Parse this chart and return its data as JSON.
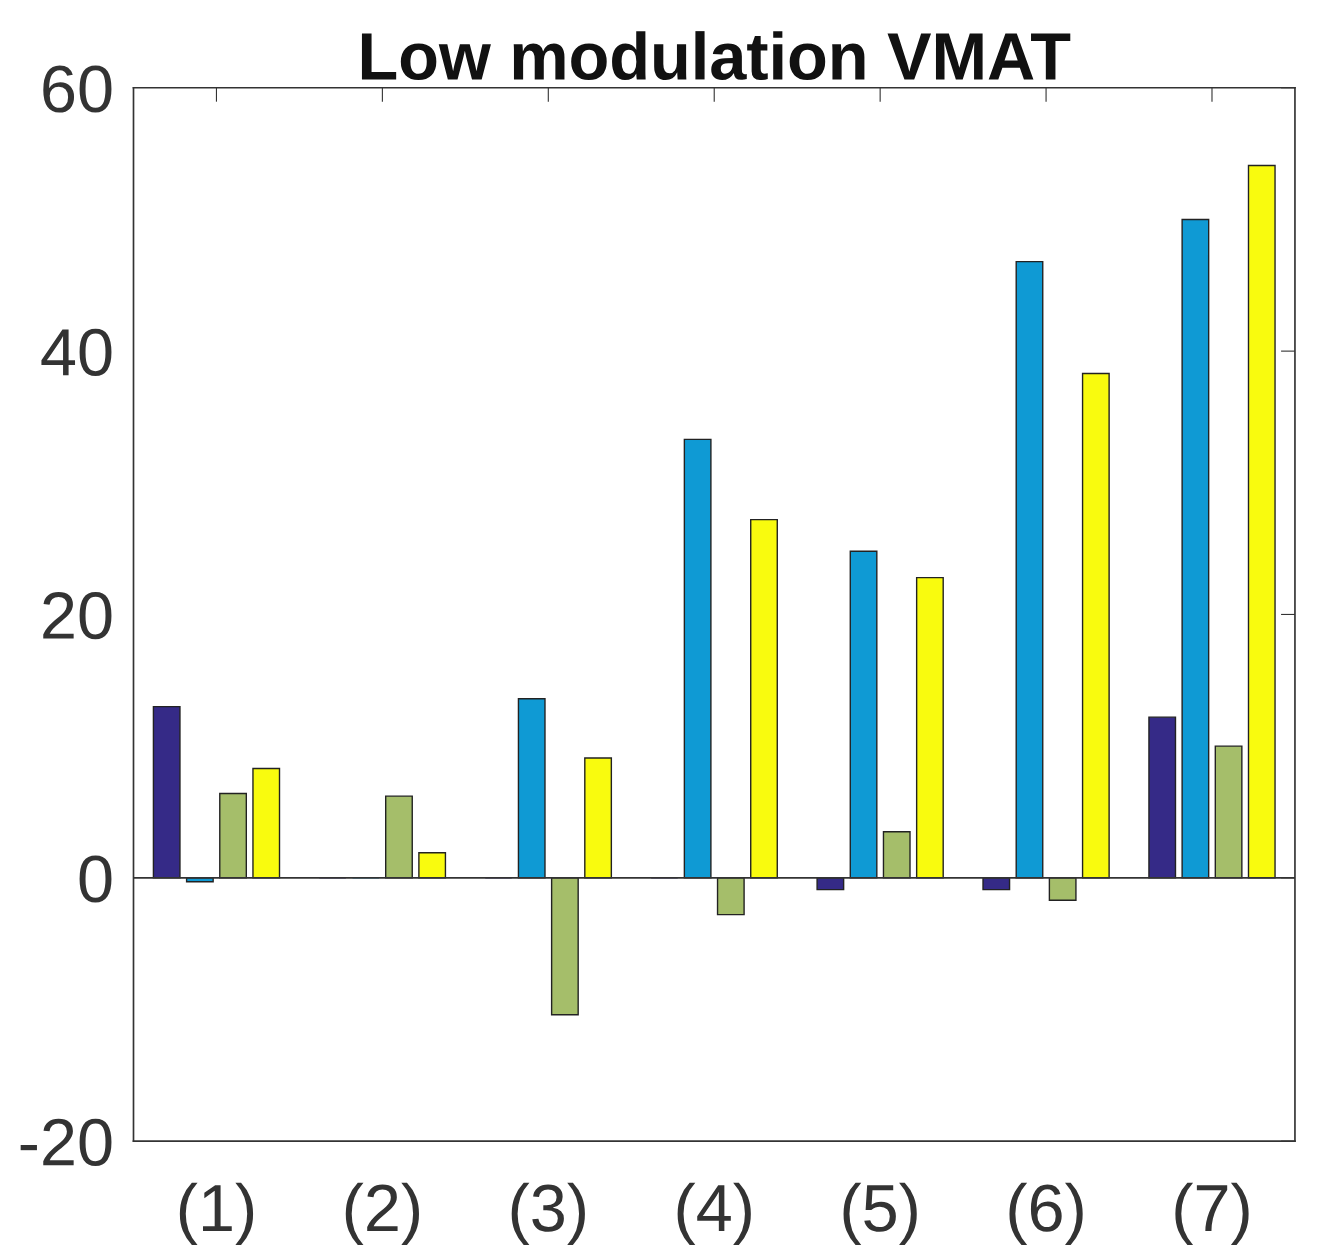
{
  "chart_data": {
    "type": "bar",
    "title": "Low modulation VMAT",
    "categories": [
      "(1)",
      "(2)",
      "(3)",
      "(4)",
      "(5)",
      "(6)",
      "(7)"
    ],
    "series": [
      {
        "color": "#352a87",
        "values": [
          13.0,
          0,
          0,
          0,
          -0.9,
          -0.9,
          12.2
        ]
      },
      {
        "color": "#0f9ad4",
        "values": [
          -0.3,
          0,
          13.6,
          33.3,
          24.8,
          46.8,
          50.0
        ]
      },
      {
        "color": "#a5be6a",
        "values": [
          6.4,
          6.2,
          -10.4,
          -2.8,
          3.5,
          -1.7,
          10.0
        ]
      },
      {
        "color": "#f9fb0e",
        "values": [
          8.3,
          1.9,
          9.1,
          27.2,
          22.8,
          38.3,
          54.1
        ]
      }
    ],
    "ylim": [
      -20,
      60
    ],
    "yticks": [
      -20,
      0,
      20,
      40,
      60
    ],
    "ref_lines": [
      {
        "axis": "y",
        "value": 0
      }
    ],
    "grid": false,
    "legend": false
  }
}
